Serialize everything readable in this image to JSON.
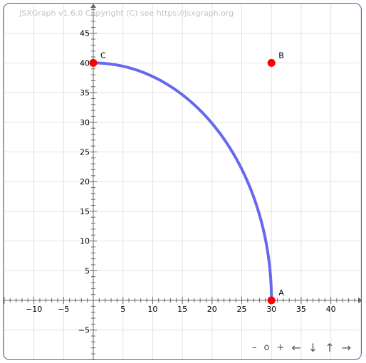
{
  "board": {
    "copyright": "JSXGraph v1.6.0 Copyright (C) see https://jsxgraph.org",
    "navigation": {
      "zoom_out": "–",
      "zoom_reset": "o",
      "zoom_in": "+",
      "left": "←",
      "down": "↓",
      "up": "↑",
      "right": "→"
    }
  },
  "axes": {
    "x": {
      "ticks": [
        -10,
        -5,
        5,
        10,
        15,
        20,
        25,
        30,
        35,
        40
      ]
    },
    "y": {
      "ticks": [
        -5,
        5,
        10,
        15,
        20,
        25,
        30,
        35,
        40,
        45
      ]
    }
  },
  "points": [
    {
      "name": "A",
      "x": 30,
      "y": 0,
      "color": "#ff0000"
    },
    {
      "name": "B",
      "x": 30,
      "y": 40,
      "color": "#ff0000"
    },
    {
      "name": "C",
      "x": 0,
      "y": 40,
      "color": "#ff0000"
    }
  ],
  "curve": {
    "type": "quarter-ellipse",
    "from": "C",
    "to": "A",
    "center": [
      0,
      0
    ],
    "radius_x": 30,
    "radius_y": 40,
    "color": "#6060ee"
  },
  "colors": {
    "grid": "#e3e3e3",
    "axis": "#666666",
    "border": "#356aa0"
  }
}
